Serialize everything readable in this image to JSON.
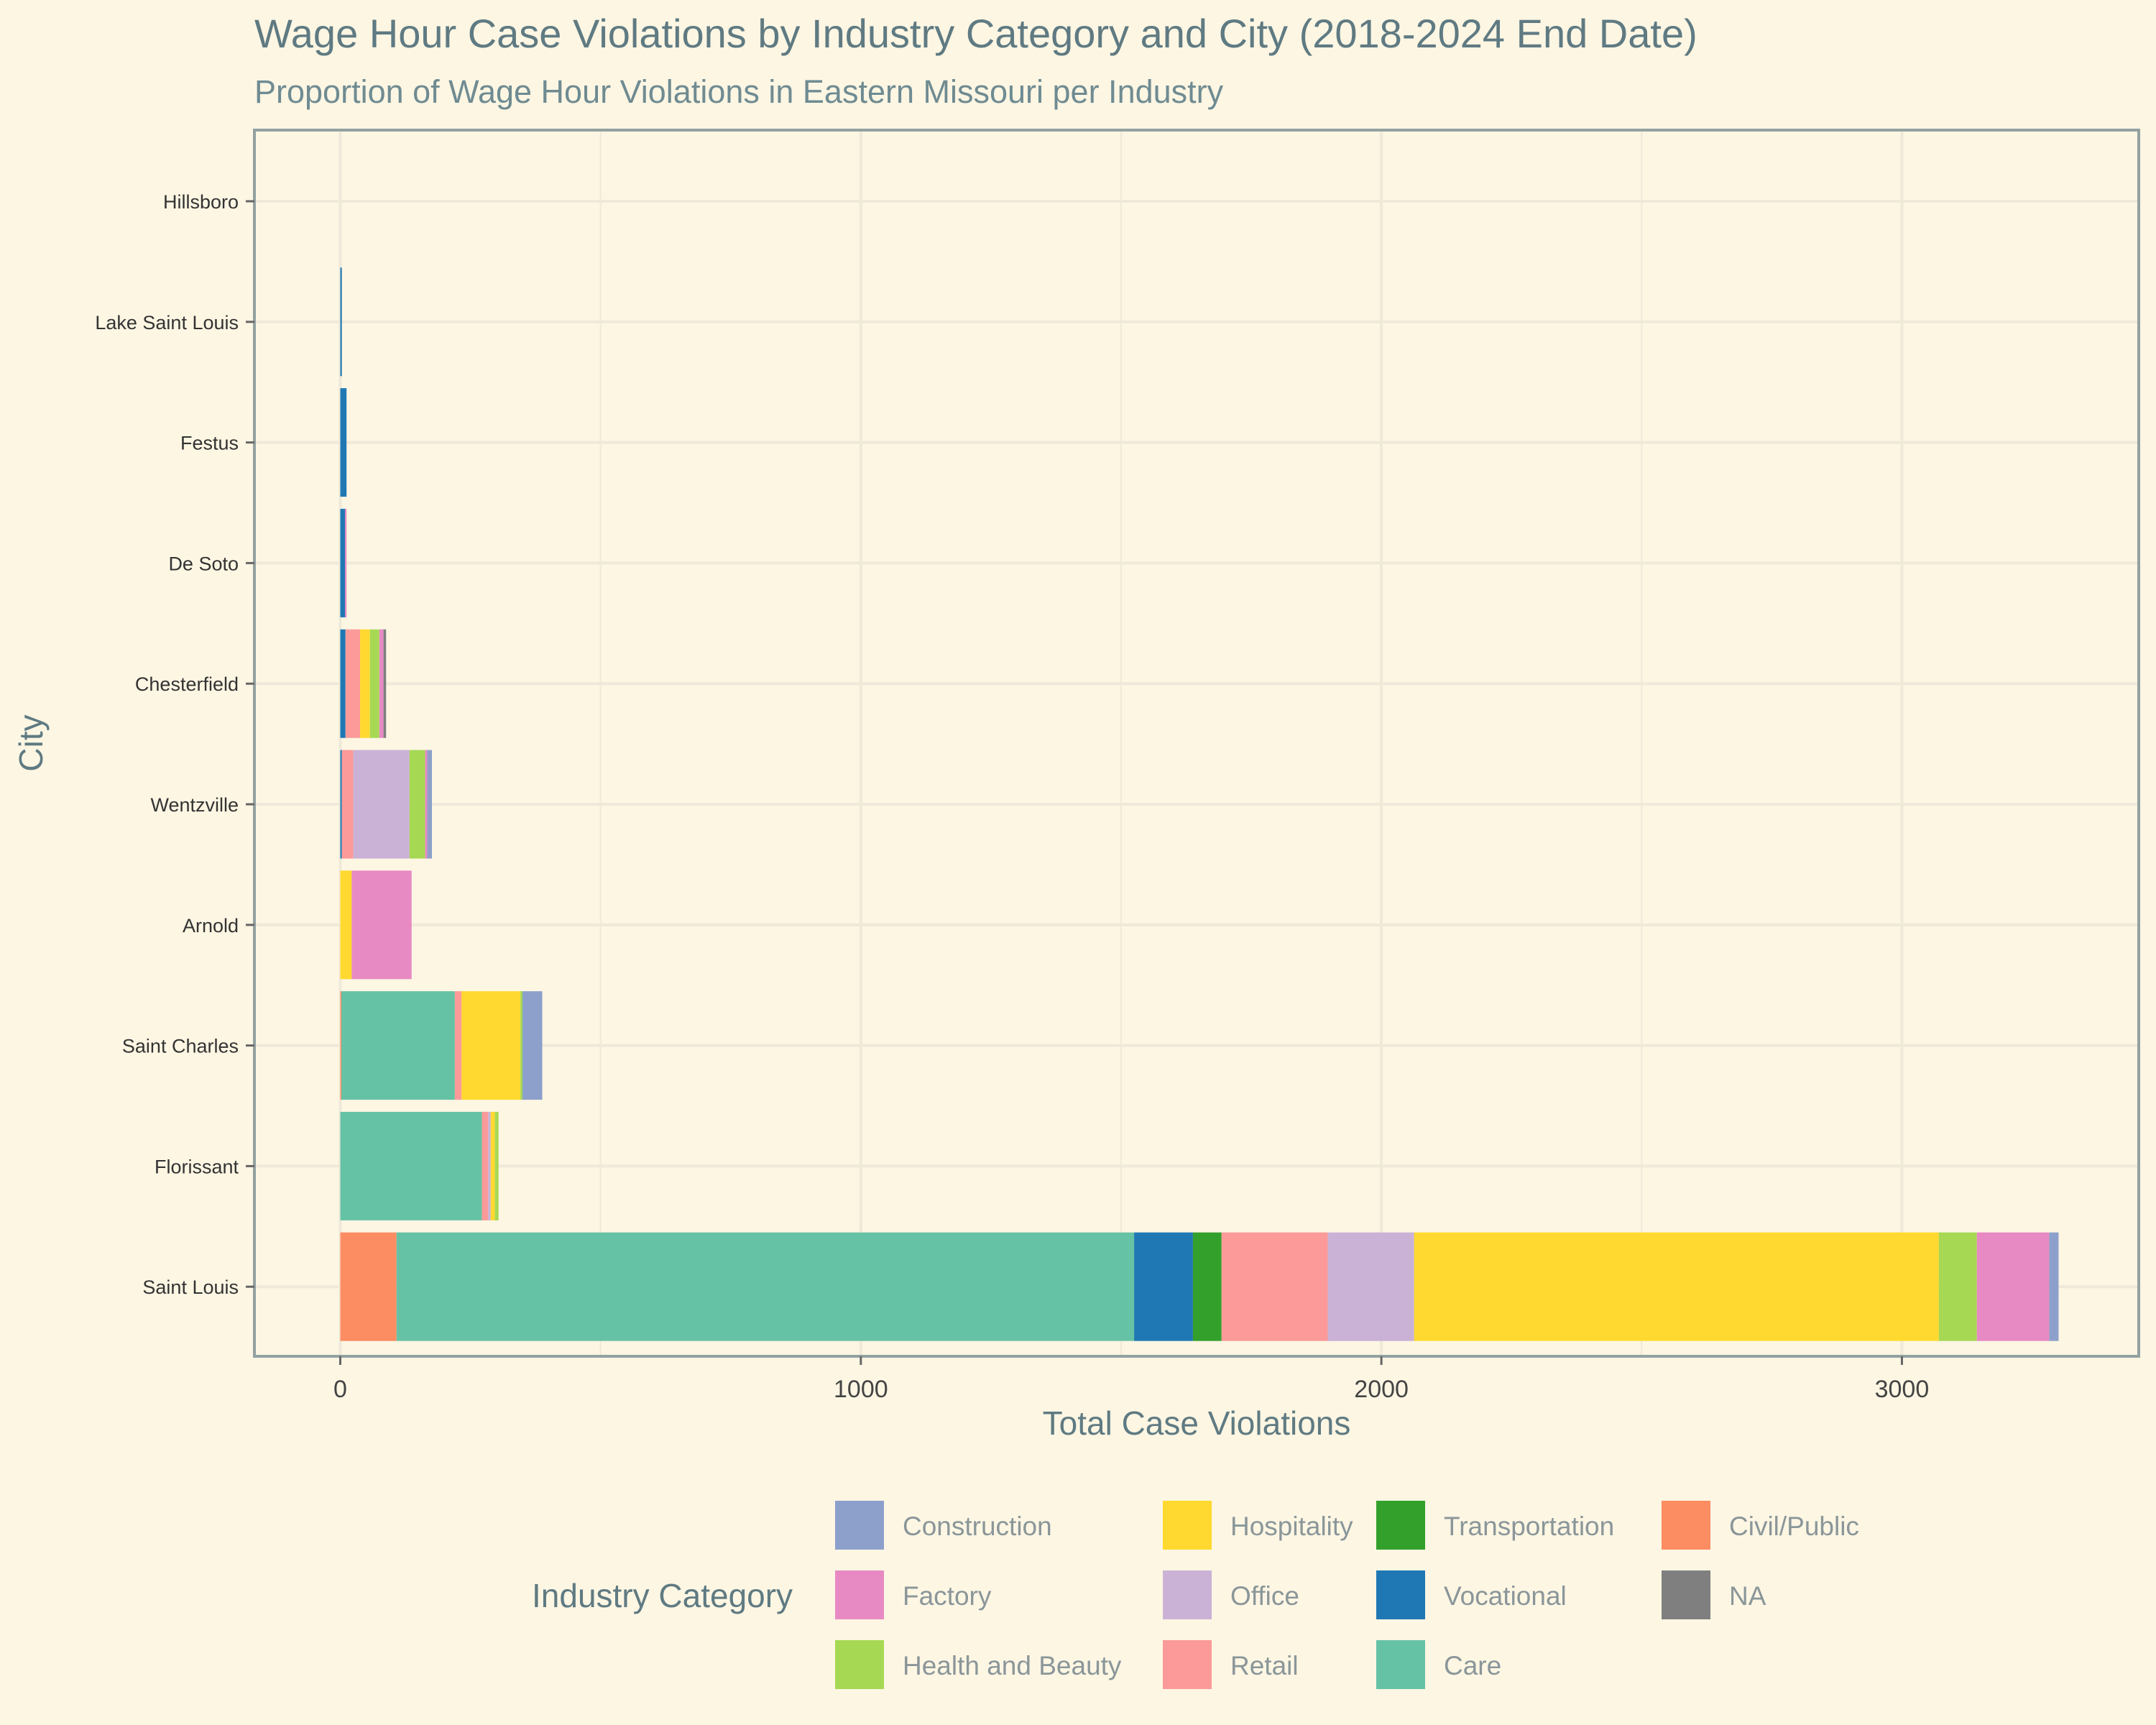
{
  "chart_data": {
    "type": "bar",
    "orientation": "horizontal",
    "stacked": true,
    "title": "Wage Hour Case Violations by Industry Category and City (2018-2024 End Date)",
    "subtitle": "Proportion of Wage Hour Violations in Eastern Missouri per Industry",
    "xlabel": "Total Case Violations",
    "ylabel": "City",
    "xlim": [
      -165,
      3455
    ],
    "xticks": [
      0,
      1000,
      2000,
      3000
    ],
    "grid": true,
    "legend": {
      "title": "Industry Category",
      "position": "bottom",
      "items": [
        "Construction",
        "Hospitality",
        "Transportation",
        "Civil/Public",
        "Factory",
        "Office",
        "Vocational",
        "NA",
        "Health and Beauty",
        "Retail",
        "Care"
      ]
    },
    "colors": {
      "Construction": "#8da0cb",
      "Hospitality": "#ffd92f",
      "Transportation": "#33a02c",
      "Civil/Public": "#fc8d62",
      "Factory": "#e78ac3",
      "Office": "#cab2d6",
      "Vocational": "#1f78b4",
      "NA": "#7f7f7f",
      "Health and Beauty": "#a6d854",
      "Retail": "#fb9a99",
      "Care": "#66c2a5"
    },
    "categories": [
      "Hillsboro",
      "Lake Saint Louis",
      "Festus",
      "De Soto",
      "Chesterfield",
      "Wentzville",
      "Arnold",
      "Saint Charles",
      "Florissant",
      "Saint Louis"
    ],
    "stack_order": [
      "Civil/Public",
      "Care",
      "Vocational",
      "Transportation",
      "Retail",
      "Office",
      "Hospitality",
      "Health and Beauty",
      "Factory",
      "Construction",
      "NA"
    ],
    "series": [
      {
        "name": "Civil/Public",
        "values": [
          0,
          0,
          0,
          0,
          0,
          0,
          0,
          2,
          0,
          108
        ]
      },
      {
        "name": "Care",
        "values": [
          0,
          0,
          0,
          0,
          0,
          0,
          0,
          218,
          272,
          1417
        ]
      },
      {
        "name": "Vocational",
        "values": [
          0,
          3,
          12,
          9,
          10,
          3,
          0,
          0,
          0,
          113
        ]
      },
      {
        "name": "Transportation",
        "values": [
          0,
          0,
          0,
          0,
          0,
          0,
          0,
          0,
          0,
          55
        ]
      },
      {
        "name": "Retail",
        "values": [
          0,
          0,
          0,
          0,
          28,
          22,
          0,
          13,
          12,
          204
        ]
      },
      {
        "name": "Office",
        "values": [
          0,
          0,
          0,
          0,
          0,
          108,
          0,
          0,
          5,
          166
        ]
      },
      {
        "name": "Hospitality",
        "values": [
          0,
          0,
          0,
          0,
          19,
          0,
          22,
          113,
          8,
          1008
        ]
      },
      {
        "name": "Health and Beauty",
        "values": [
          0,
          0,
          0,
          0,
          18,
          30,
          0,
          4,
          7,
          73
        ]
      },
      {
        "name": "Factory",
        "values": [
          0,
          0,
          0,
          3,
          8,
          4,
          115,
          0,
          0,
          139
        ]
      },
      {
        "name": "Construction",
        "values": [
          0,
          0,
          0,
          0,
          0,
          9,
          0,
          38,
          0,
          18
        ]
      },
      {
        "name": "NA",
        "values": [
          0,
          0,
          0,
          0,
          5,
          0,
          0,
          0,
          0,
          0
        ]
      }
    ]
  }
}
